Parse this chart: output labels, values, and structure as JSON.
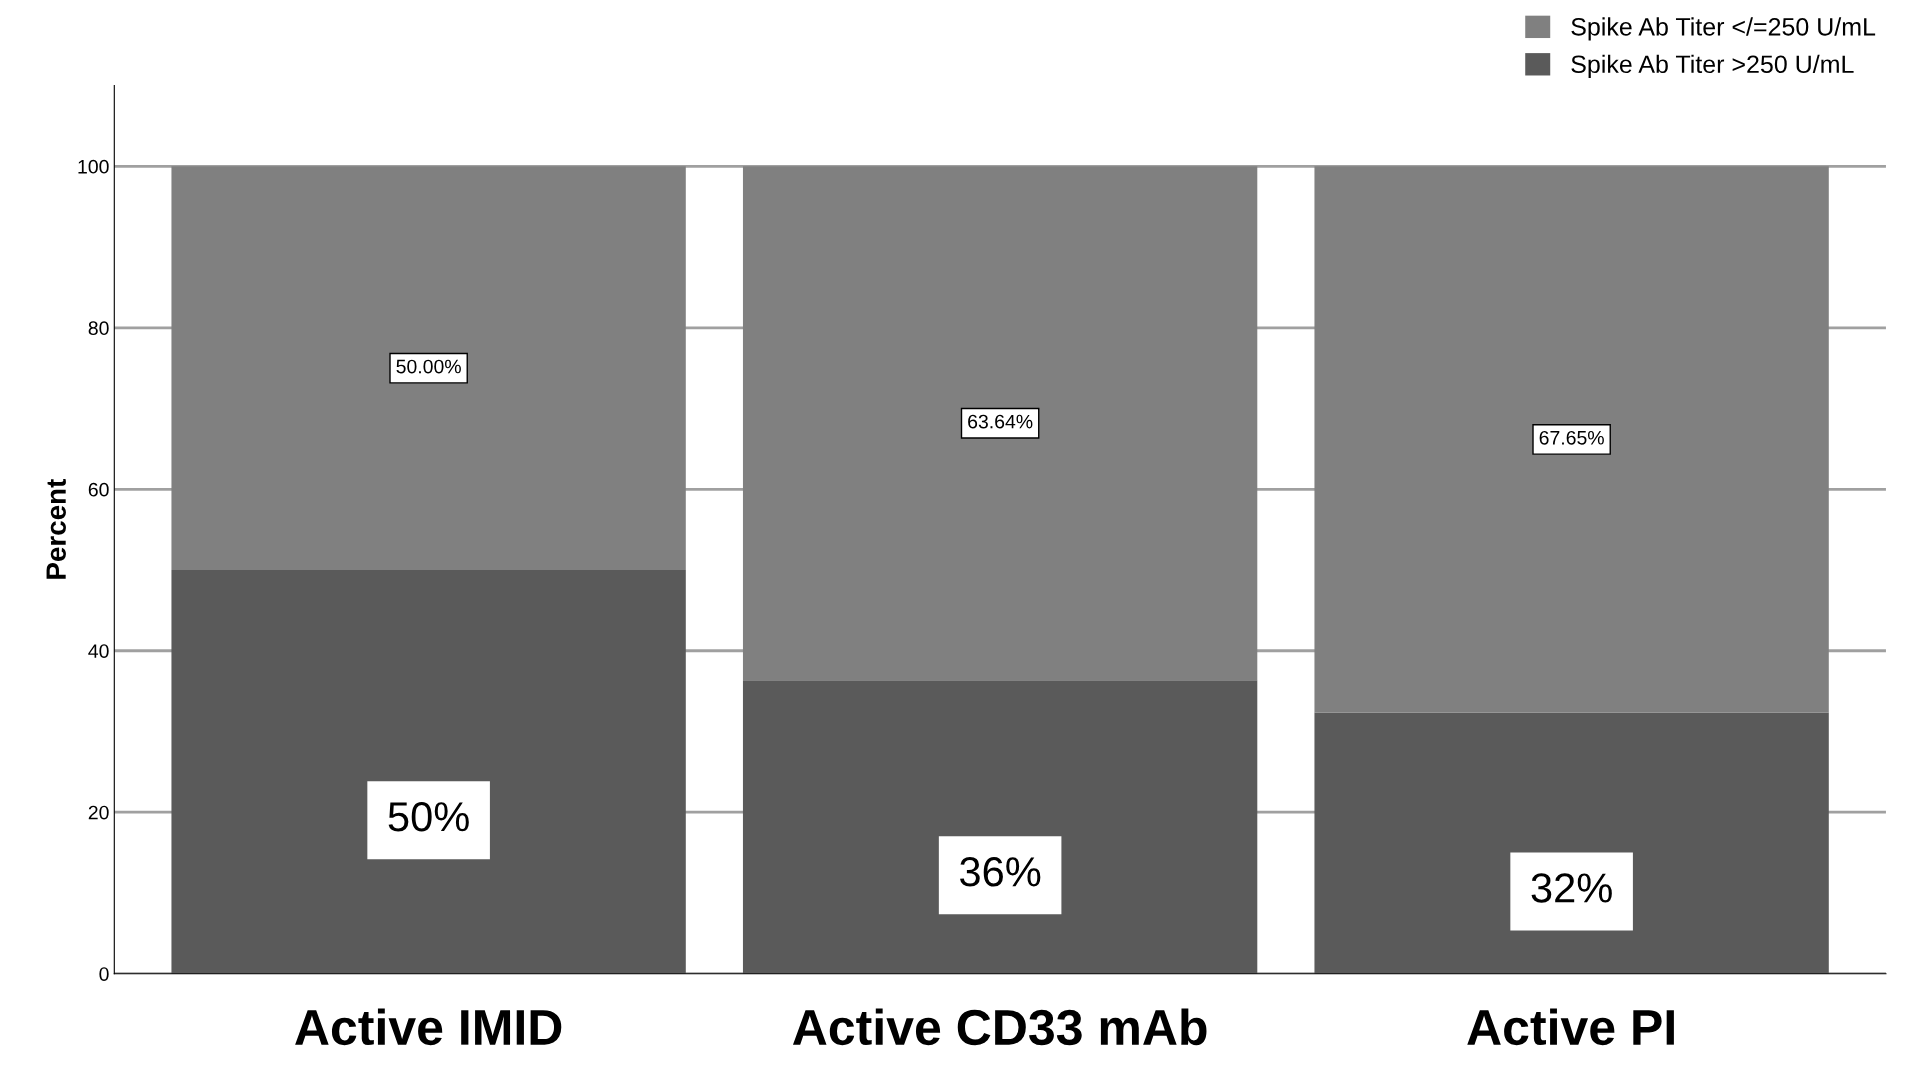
{
  "chart_data": {
    "type": "bar",
    "stacked": true,
    "ylabel": "Percent",
    "categories": [
      "Active IMID",
      "Active CD33 mAb",
      "Active PI"
    ],
    "series": [
      {
        "name": "Spike Ab Titer >250 U/mL",
        "color": "#5a5a5a",
        "values": [
          50,
          36.36,
          32.35
        ],
        "value_labels": [
          "50%",
          "36%",
          "32%"
        ]
      },
      {
        "name": "Spike Ab Titer </=250 U/mL",
        "color": "#808080",
        "values": [
          50,
          63.64,
          67.65
        ],
        "value_labels": [
          "50.00%",
          "63.64%",
          "67.65%"
        ]
      }
    ],
    "ylim": [
      0,
      110
    ],
    "yticks": [
      0,
      20,
      40,
      60,
      80,
      100
    ],
    "grid": "y",
    "legend": "top right"
  }
}
